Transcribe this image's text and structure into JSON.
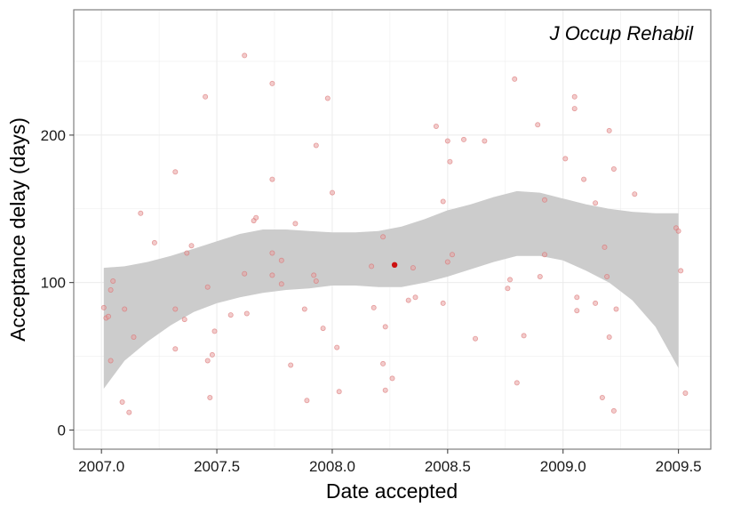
{
  "chart_data": {
    "type": "scatter",
    "title": "",
    "annotation": "J Occup Rehabil",
    "xlabel": "Date accepted",
    "ylabel": "Acceptance delay (days)",
    "xlim": [
      2006.88,
      2009.64
    ],
    "ylim": [
      -13,
      285
    ],
    "x_ticks": [
      2007.0,
      2007.5,
      2008.0,
      2008.5,
      2009.0,
      2009.5
    ],
    "x_tick_labels": [
      "2007.0",
      "2007.5",
      "2008.0",
      "2008.5",
      "2009.0",
      "2009.5"
    ],
    "y_ticks": [
      0,
      100,
      200
    ],
    "y_tick_labels": [
      "0",
      "100",
      "200"
    ],
    "grid": true,
    "legend": "none",
    "colors": {
      "points": "#e8a0a0",
      "points_stroke": "#d86a6a",
      "highlight_point": "#cc1111",
      "band": "#cccccc",
      "grid": "#ebebeb",
      "panel_border": "#7f7f7f"
    },
    "series": [
      {
        "points": [
          [
            2007.01,
            83
          ],
          [
            2007.02,
            76
          ],
          [
            2007.03,
            77
          ],
          [
            2007.04,
            95
          ],
          [
            2007.05,
            101
          ],
          [
            2007.04,
            47
          ],
          [
            2007.09,
            19
          ],
          [
            2007.1,
            82
          ],
          [
            2007.12,
            12
          ],
          [
            2007.14,
            63
          ],
          [
            2007.17,
            147
          ],
          [
            2007.23,
            127
          ],
          [
            2007.32,
            175
          ],
          [
            2007.32,
            82
          ],
          [
            2007.32,
            55
          ],
          [
            2007.36,
            75
          ],
          [
            2007.37,
            120
          ],
          [
            2007.39,
            125
          ],
          [
            2007.45,
            226
          ],
          [
            2007.46,
            97
          ],
          [
            2007.46,
            47
          ],
          [
            2007.47,
            22
          ],
          [
            2007.48,
            51
          ],
          [
            2007.49,
            67
          ],
          [
            2007.56,
            78
          ],
          [
            2007.62,
            254
          ],
          [
            2007.62,
            106
          ],
          [
            2007.63,
            79
          ],
          [
            2007.66,
            142
          ],
          [
            2007.67,
            144
          ],
          [
            2007.74,
            235
          ],
          [
            2007.74,
            170
          ],
          [
            2007.74,
            120
          ],
          [
            2007.74,
            105
          ],
          [
            2007.78,
            115
          ],
          [
            2007.78,
            99
          ],
          [
            2007.82,
            44
          ],
          [
            2007.84,
            140
          ],
          [
            2007.88,
            82
          ],
          [
            2007.89,
            20
          ],
          [
            2007.92,
            105
          ],
          [
            2007.93,
            193
          ],
          [
            2007.93,
            101
          ],
          [
            2007.96,
            69
          ],
          [
            2007.98,
            225
          ],
          [
            2008.0,
            161
          ],
          [
            2008.02,
            56
          ],
          [
            2008.03,
            26
          ],
          [
            2008.17,
            111
          ],
          [
            2008.18,
            83
          ],
          [
            2008.22,
            45
          ],
          [
            2008.22,
            131
          ],
          [
            2008.23,
            70
          ],
          [
            2008.23,
            27
          ],
          [
            2008.26,
            35
          ],
          [
            2008.33,
            88
          ],
          [
            2008.35,
            110
          ],
          [
            2008.36,
            90
          ],
          [
            2008.45,
            206
          ],
          [
            2008.48,
            155
          ],
          [
            2008.48,
            86
          ],
          [
            2008.5,
            196
          ],
          [
            2008.5,
            114
          ],
          [
            2008.51,
            182
          ],
          [
            2008.52,
            119
          ],
          [
            2008.57,
            197
          ],
          [
            2008.62,
            62
          ],
          [
            2008.66,
            196
          ],
          [
            2008.76,
            96
          ],
          [
            2008.77,
            102
          ],
          [
            2008.79,
            238
          ],
          [
            2008.8,
            32
          ],
          [
            2008.83,
            64
          ],
          [
            2008.89,
            207
          ],
          [
            2008.9,
            104
          ],
          [
            2008.92,
            156
          ],
          [
            2008.92,
            119
          ],
          [
            2009.01,
            184
          ],
          [
            2009.05,
            226
          ],
          [
            2009.05,
            218
          ],
          [
            2009.06,
            90
          ],
          [
            2009.06,
            81
          ],
          [
            2009.09,
            170
          ],
          [
            2009.14,
            154
          ],
          [
            2009.14,
            86
          ],
          [
            2009.17,
            22
          ],
          [
            2009.18,
            124
          ],
          [
            2009.19,
            104
          ],
          [
            2009.2,
            203
          ],
          [
            2009.2,
            63
          ],
          [
            2009.22,
            177
          ],
          [
            2009.22,
            13
          ],
          [
            2009.23,
            82
          ],
          [
            2009.31,
            160
          ],
          [
            2009.49,
            137
          ],
          [
            2009.5,
            135
          ],
          [
            2009.51,
            108
          ],
          [
            2009.53,
            25
          ]
        ],
        "highlight": [
          [
            2008.27,
            112
          ]
        ]
      }
    ],
    "smooth_band": {
      "x": [
        2007.01,
        2007.1,
        2007.2,
        2007.3,
        2007.4,
        2007.5,
        2007.6,
        2007.7,
        2007.8,
        2007.9,
        2008.0,
        2008.1,
        2008.2,
        2008.3,
        2008.4,
        2008.5,
        2008.6,
        2008.7,
        2008.8,
        2008.9,
        2009.0,
        2009.1,
        2009.2,
        2009.3,
        2009.4,
        2009.5
      ],
      "upper": [
        110,
        111,
        114,
        118,
        123,
        128,
        133,
        136,
        136,
        135,
        134,
        134,
        135,
        138,
        143,
        149,
        153,
        158,
        162,
        161,
        157,
        153,
        150,
        148,
        147,
        147
      ],
      "lower": [
        28,
        47,
        60,
        71,
        80,
        86,
        90,
        93,
        95,
        96,
        98,
        98,
        97,
        97,
        100,
        104,
        109,
        114,
        118,
        118,
        115,
        108,
        100,
        88,
        70,
        42
      ]
    }
  }
}
